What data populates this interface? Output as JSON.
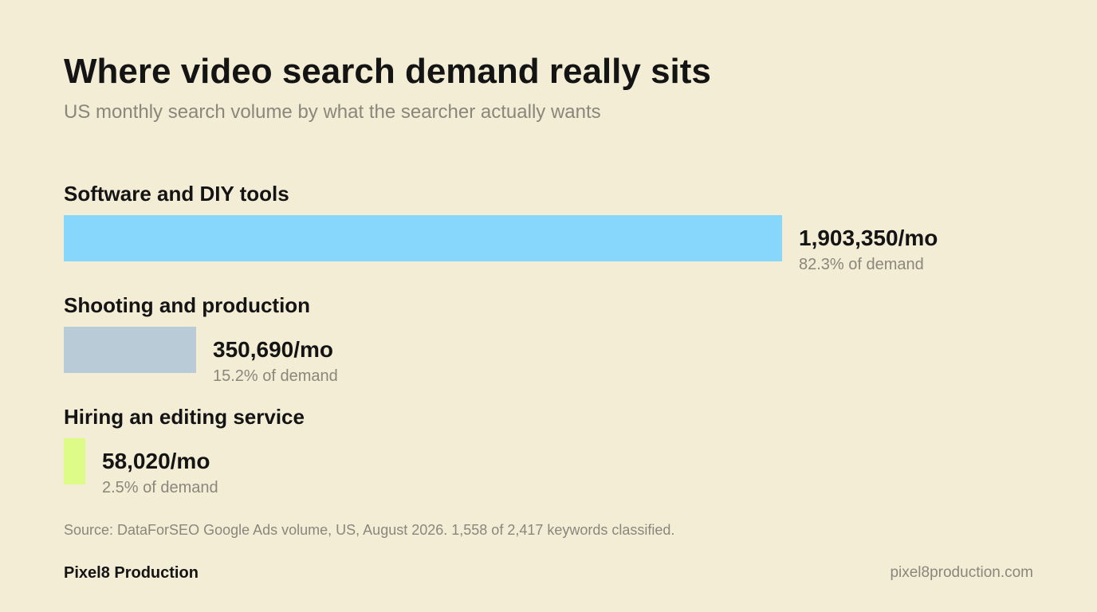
{
  "chart_data": {
    "type": "bar",
    "orientation": "horizontal",
    "title": "Where video search demand really sits",
    "subtitle": "US monthly search volume by what the searcher actually wants",
    "categories": [
      "Software and DIY tools",
      "Shooting and production",
      "Hiring an editing service"
    ],
    "values": [
      1903350,
      350690,
      58020
    ],
    "value_labels": [
      "1,903,350/mo",
      "350,690/mo",
      "58,020/mo"
    ],
    "share_labels": [
      "82.3% of demand",
      "15.2% of demand",
      "2.5% of demand"
    ],
    "colors": [
      "#87d6fb",
      "#b9cbd6",
      "#ddfc87"
    ],
    "grid": false,
    "legend": "none"
  },
  "footer": {
    "source": "Source: DataForSEO Google Ads volume, US, August 2026. 1,558 of 2,417 keywords classified.",
    "brand": "Pixel8 Production",
    "url": "pixel8production.com"
  }
}
